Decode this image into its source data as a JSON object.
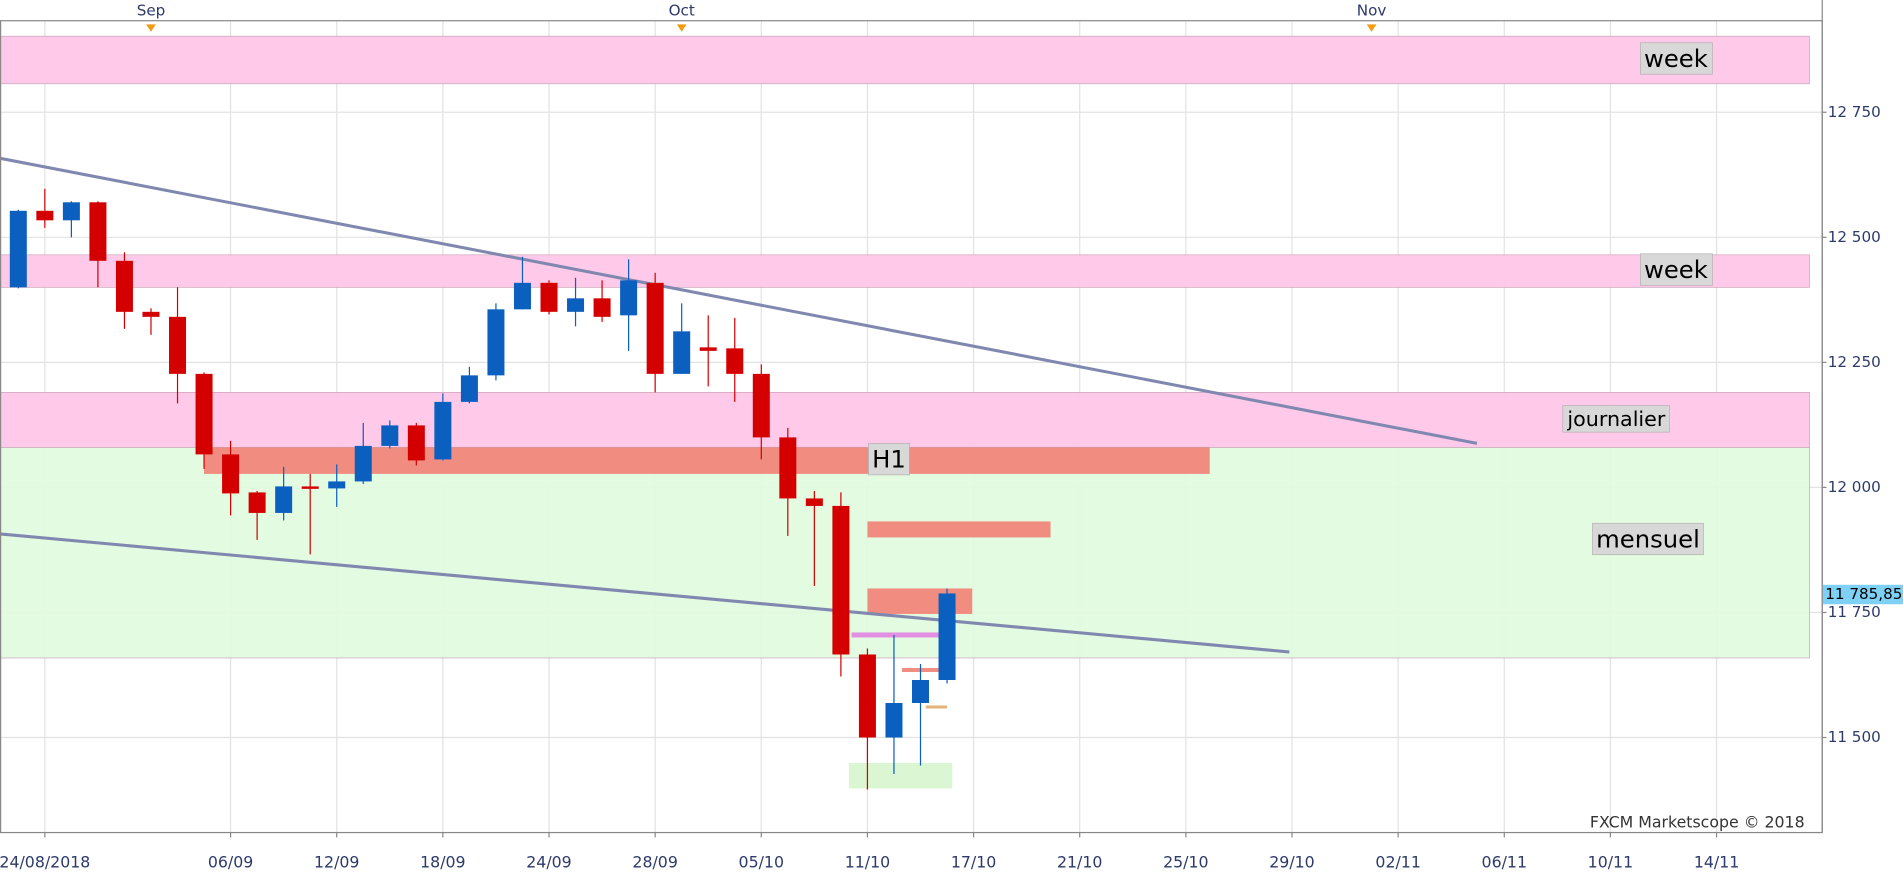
{
  "chart_data": {
    "type": "candlestick",
    "up_color": "#0a5fbf",
    "down_color": "#d40000",
    "x": [
      0,
      1,
      2,
      3,
      4,
      5,
      6,
      7,
      8,
      9,
      10,
      11,
      12,
      13,
      14,
      15,
      16,
      17,
      18,
      19,
      20,
      21,
      22,
      23,
      24,
      25,
      26,
      27,
      28,
      29,
      30,
      31,
      32,
      33,
      34,
      35
    ],
    "open": [
      12400,
      12553,
      12534,
      12570,
      12453,
      12351,
      12341,
      12227,
      12066,
      11990,
      11949,
      12002,
      11998,
      12012,
      12083,
      12124,
      12056,
      12171,
      12224,
      12356,
      12409,
      12351,
      12378,
      12344,
      12409,
      12227,
      12280,
      12278,
      12227,
      12100,
      11978,
      11963,
      11666,
      11500,
      11569,
      11615
    ],
    "high": [
      12555,
      12597,
      12572,
      12572,
      12470,
      12358,
      12400,
      12230,
      12093,
      11993,
      12041,
      12027,
      12046,
      12129,
      12134,
      12129,
      12188,
      12241,
      12368,
      12461,
      12414,
      12419,
      12414,
      12456,
      12429,
      12368,
      12344,
      12339,
      12246,
      12119,
      11993,
      11990,
      11678,
      11705,
      11647,
      11798
    ],
    "low": [
      12398,
      12519,
      12500,
      12400,
      12317,
      12305,
      12168,
      12037,
      11944,
      11895,
      11934,
      11866,
      11961,
      12007,
      12078,
      12044,
      12054,
      12168,
      12214,
      12356,
      12346,
      12322,
      12331,
      12273,
      12190,
      12227,
      12202,
      12171,
      12056,
      11903,
      11803,
      11622,
      11396,
      11427,
      11444,
      11608
    ],
    "close": [
      12553,
      12534,
      12570,
      12453,
      12351,
      12341,
      12227,
      12066,
      11988,
      11949,
      12002,
      11998,
      12012,
      12083,
      12124,
      12054,
      12171,
      12224,
      12356,
      12409,
      12351,
      12378,
      12341,
      12414,
      12227,
      12312,
      12273,
      12227,
      12100,
      11978,
      11963,
      11666,
      11500,
      11569,
      11615,
      11788
    ],
    "xlim": [
      -0.69,
      67.96
    ],
    "ylim": [
      11310,
      12933
    ],
    "xticks": [
      {
        "value": 1,
        "label": "24/08/2018"
      },
      {
        "value": 8,
        "label": "06/09"
      },
      {
        "value": 12,
        "label": "12/09"
      },
      {
        "value": 16,
        "label": "18/09"
      },
      {
        "value": 20,
        "label": "24/09"
      },
      {
        "value": 24,
        "label": "28/09"
      },
      {
        "value": 28,
        "label": "05/10"
      },
      {
        "value": 32,
        "label": "11/10"
      },
      {
        "value": 36,
        "label": "17/10"
      },
      {
        "value": 40,
        "label": "21/10"
      },
      {
        "value": 44,
        "label": "25/10"
      },
      {
        "value": 48,
        "label": "29/10"
      },
      {
        "value": 52,
        "label": "02/11"
      },
      {
        "value": 56,
        "label": "06/11"
      },
      {
        "value": 60,
        "label": "10/11"
      },
      {
        "value": 64,
        "label": "14/11"
      }
    ],
    "month_ticks": [
      {
        "value": 5,
        "label": "Sep"
      },
      {
        "value": 25,
        "label": "Oct"
      },
      {
        "value": 51,
        "label": "Nov"
      }
    ],
    "yticks": [
      {
        "value": 11500,
        "label": "11 500"
      },
      {
        "value": 11750,
        "label": "11 750"
      },
      {
        "value": 12000,
        "label": "12 000"
      },
      {
        "value": 12250,
        "label": "12 250"
      },
      {
        "value": 12500,
        "label": "12 500"
      },
      {
        "value": 12750,
        "label": "12 750"
      }
    ],
    "grid": true,
    "last_price": {
      "value": 11785.85,
      "label": "11 785,85"
    },
    "zones": [
      {
        "label": "week",
        "y": [
          12807,
          12902
        ],
        "color": "#ffc8e8"
      },
      {
        "label": "week",
        "y": [
          12400,
          12465
        ],
        "color": "#ffc8e8"
      },
      {
        "label": "journalier",
        "y": [
          12080,
          12190
        ],
        "color": "#ffc8e8"
      },
      {
        "label": "mensuel",
        "y": [
          11659,
          12080
        ],
        "color": "#e2fbe0"
      },
      {
        "label": "H1",
        "y": [
          12027,
          12080
        ],
        "x": [
          7,
          44.9
        ],
        "color": "#f0877a"
      },
      {
        "y": [
          11900,
          11932
        ],
        "x": [
          32,
          38.9
        ],
        "color": "#f0877a"
      },
      {
        "y": [
          11747,
          11798
        ],
        "x": [
          32,
          35.95
        ],
        "color": "#f0877a"
      },
      {
        "y": [
          11398,
          11449
        ],
        "x": [
          31.3,
          35.2
        ],
        "color": "#d8f5d0"
      },
      {
        "y": [
          11700,
          11710
        ],
        "x": [
          31.4,
          34.7
        ],
        "color": "#e08ae0"
      },
      {
        "y": [
          11631,
          11639
        ],
        "x": [
          33.3,
          35
        ],
        "color": "#f0877a"
      },
      {
        "y": [
          11558,
          11564
        ],
        "x": [
          34.2,
          35
        ],
        "color": "#e0b070"
      }
    ],
    "trendlines": [
      {
        "x": [
          -0.69,
          54.97
        ],
        "y": [
          12658,
          12088
        ],
        "color": "#8088b0"
      },
      {
        "x": [
          -0.69,
          47.9
        ],
        "y": [
          11907,
          11671
        ],
        "color": "#8088b0"
      }
    ],
    "watermark": "FXCM Marketscope © 2018"
  }
}
